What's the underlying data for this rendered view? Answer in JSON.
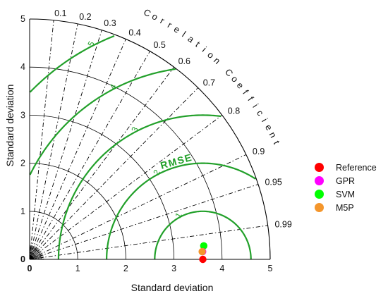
{
  "chart_data": {
    "type": "taylor-diagram",
    "axis_label_x": "Standard deviation",
    "axis_label_y": "Standard deviation",
    "axis_label_arc": "Correlation Coefficient",
    "rmse_label": "RMSE",
    "std_range": [
      0,
      5
    ],
    "std_ticks": [
      {
        "value": 0,
        "label": "0"
      },
      {
        "value": 1,
        "label": "1"
      },
      {
        "value": 2,
        "label": "2"
      },
      {
        "value": 3,
        "label": "3"
      },
      {
        "value": 4,
        "label": "4"
      },
      {
        "value": 5,
        "label": "5"
      }
    ],
    "correlation_ticks": [
      {
        "value": 0.1,
        "label": "0.1"
      },
      {
        "value": 0.2,
        "label": "0.2"
      },
      {
        "value": 0.3,
        "label": "0.3"
      },
      {
        "value": 0.4,
        "label": "0.4"
      },
      {
        "value": 0.5,
        "label": "0.5"
      },
      {
        "value": 0.6,
        "label": "0.6"
      },
      {
        "value": 0.7,
        "label": "0.7"
      },
      {
        "value": 0.8,
        "label": "0.8"
      },
      {
        "value": 0.9,
        "label": "0.9"
      },
      {
        "value": 0.95,
        "label": "0.95"
      },
      {
        "value": 0.99,
        "label": "0.99"
      }
    ],
    "rmse_contours": [
      {
        "value": 1,
        "label": "1"
      },
      {
        "value": 2,
        "label": "2"
      },
      {
        "value": 3,
        "label": "3"
      },
      {
        "value": 4,
        "label": "4"
      },
      {
        "value": 5,
        "label": "5"
      }
    ],
    "reference_std": 3.6,
    "series": [
      {
        "name": "Reference",
        "std": 3.6,
        "corr": 1.0,
        "color": "#ff0000"
      },
      {
        "name": "GPR",
        "std": 3.6,
        "corr": 0.999,
        "color": "#ff00ff"
      },
      {
        "name": "SVM",
        "std": 3.63,
        "corr": 0.997,
        "color": "#00ff00"
      },
      {
        "name": "M5P",
        "std": 3.59,
        "corr": 0.999,
        "color": "#f4962c"
      }
    ],
    "colors": {
      "rmse": "#22a02a",
      "axis": "#000000"
    }
  }
}
